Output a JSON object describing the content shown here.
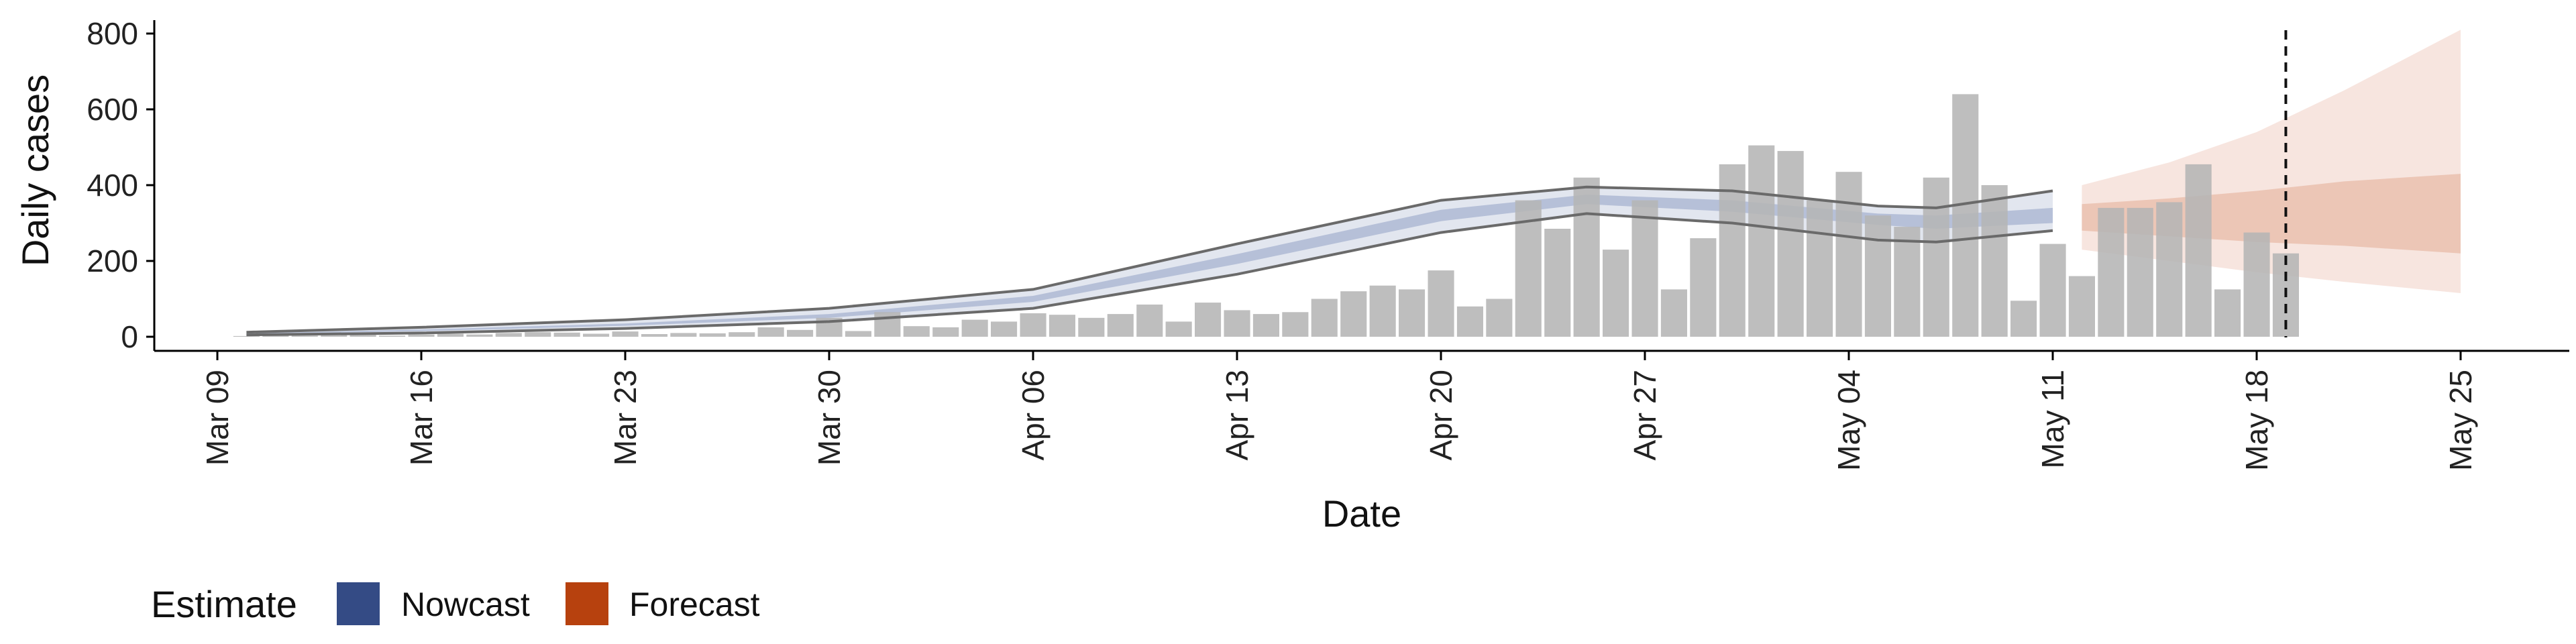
{
  "chart_data": {
    "type": "bar",
    "xlabel": "Date",
    "ylabel": "Daily cases",
    "ylim": [
      0,
      800
    ],
    "y_ticks": [
      "0",
      "200",
      "400",
      "600",
      "800"
    ],
    "x_ticks": [
      "Mar 09",
      "Mar 16",
      "Mar 23",
      "Mar 30",
      "Apr 06",
      "Apr 13",
      "Apr 20",
      "Apr 27",
      "May 04",
      "May 11",
      "May 18",
      "May 25"
    ],
    "x_tick_dates": [
      "2020-03-09",
      "2020-03-16",
      "2020-03-23",
      "2020-03-30",
      "2020-04-06",
      "2020-04-13",
      "2020-04-20",
      "2020-04-27",
      "2020-05-04",
      "2020-05-11",
      "2020-05-18",
      "2020-05-25"
    ],
    "x_range": [
      "2020-03-09",
      "2020-05-25"
    ],
    "grid": false,
    "legend_position": "bottom-left",
    "legend": {
      "title": "Estimate",
      "items": [
        {
          "label": "Nowcast",
          "color": "#344b85"
        },
        {
          "label": "Forecast",
          "color": "#b7410e"
        }
      ]
    },
    "vline_date": "2020-05-19",
    "colors": {
      "bars": "#b5b5b5",
      "nowcast_outer": "#e2e6ef",
      "nowcast_inner": "#b6c0d8",
      "forecast_outer": "#f7e5df",
      "forecast_inner": "#ecc6b6",
      "nowcast_border": "#6a6a6a",
      "axis": "#000000"
    },
    "bars": {
      "start_date": "2020-03-10",
      "values": [
        2,
        3,
        3,
        4,
        5,
        3,
        6,
        8,
        6,
        10,
        12,
        11,
        8,
        14,
        7,
        10,
        9,
        12,
        25,
        18,
        50,
        15,
        65,
        28,
        25,
        45,
        40,
        62,
        58,
        50,
        60,
        85,
        40,
        90,
        70,
        60,
        65,
        100,
        120,
        135,
        125,
        175,
        80,
        100,
        360,
        285,
        420,
        230,
        360,
        125,
        260,
        455,
        505,
        490,
        360,
        435,
        320,
        290,
        420,
        640,
        400,
        95,
        245,
        160,
        340,
        340,
        355,
        455,
        125,
        275,
        220
      ]
    },
    "nowcast": {
      "dates": [
        "2020-03-10",
        "2020-03-16",
        "2020-03-23",
        "2020-03-30",
        "2020-04-06",
        "2020-04-13",
        "2020-04-20",
        "2020-04-25",
        "2020-04-30",
        "2020-05-05",
        "2020-05-07",
        "2020-05-11"
      ],
      "median": [
        8,
        17,
        32,
        55,
        100,
        205,
        320,
        362,
        345,
        310,
        300,
        320
      ],
      "lower_50": [
        7,
        15,
        29,
        50,
        92,
        192,
        305,
        350,
        330,
        295,
        285,
        300
      ],
      "upper_50": [
        9,
        19,
        35,
        60,
        108,
        218,
        335,
        375,
        360,
        325,
        320,
        340
      ],
      "lower_90": [
        5,
        10,
        22,
        40,
        75,
        165,
        275,
        325,
        300,
        255,
        250,
        280
      ],
      "upper_90": [
        12,
        25,
        45,
        75,
        125,
        245,
        360,
        395,
        385,
        345,
        340,
        385
      ]
    },
    "forecast": {
      "dates": [
        "2020-05-12",
        "2020-05-15",
        "2020-05-18",
        "2020-05-21",
        "2020-05-25"
      ],
      "lower_50": [
        280,
        265,
        250,
        240,
        220
      ],
      "upper_50": [
        350,
        365,
        385,
        410,
        430
      ],
      "lower_90": [
        230,
        200,
        170,
        145,
        115
      ],
      "upper_90": [
        400,
        460,
        540,
        650,
        810
      ]
    }
  }
}
